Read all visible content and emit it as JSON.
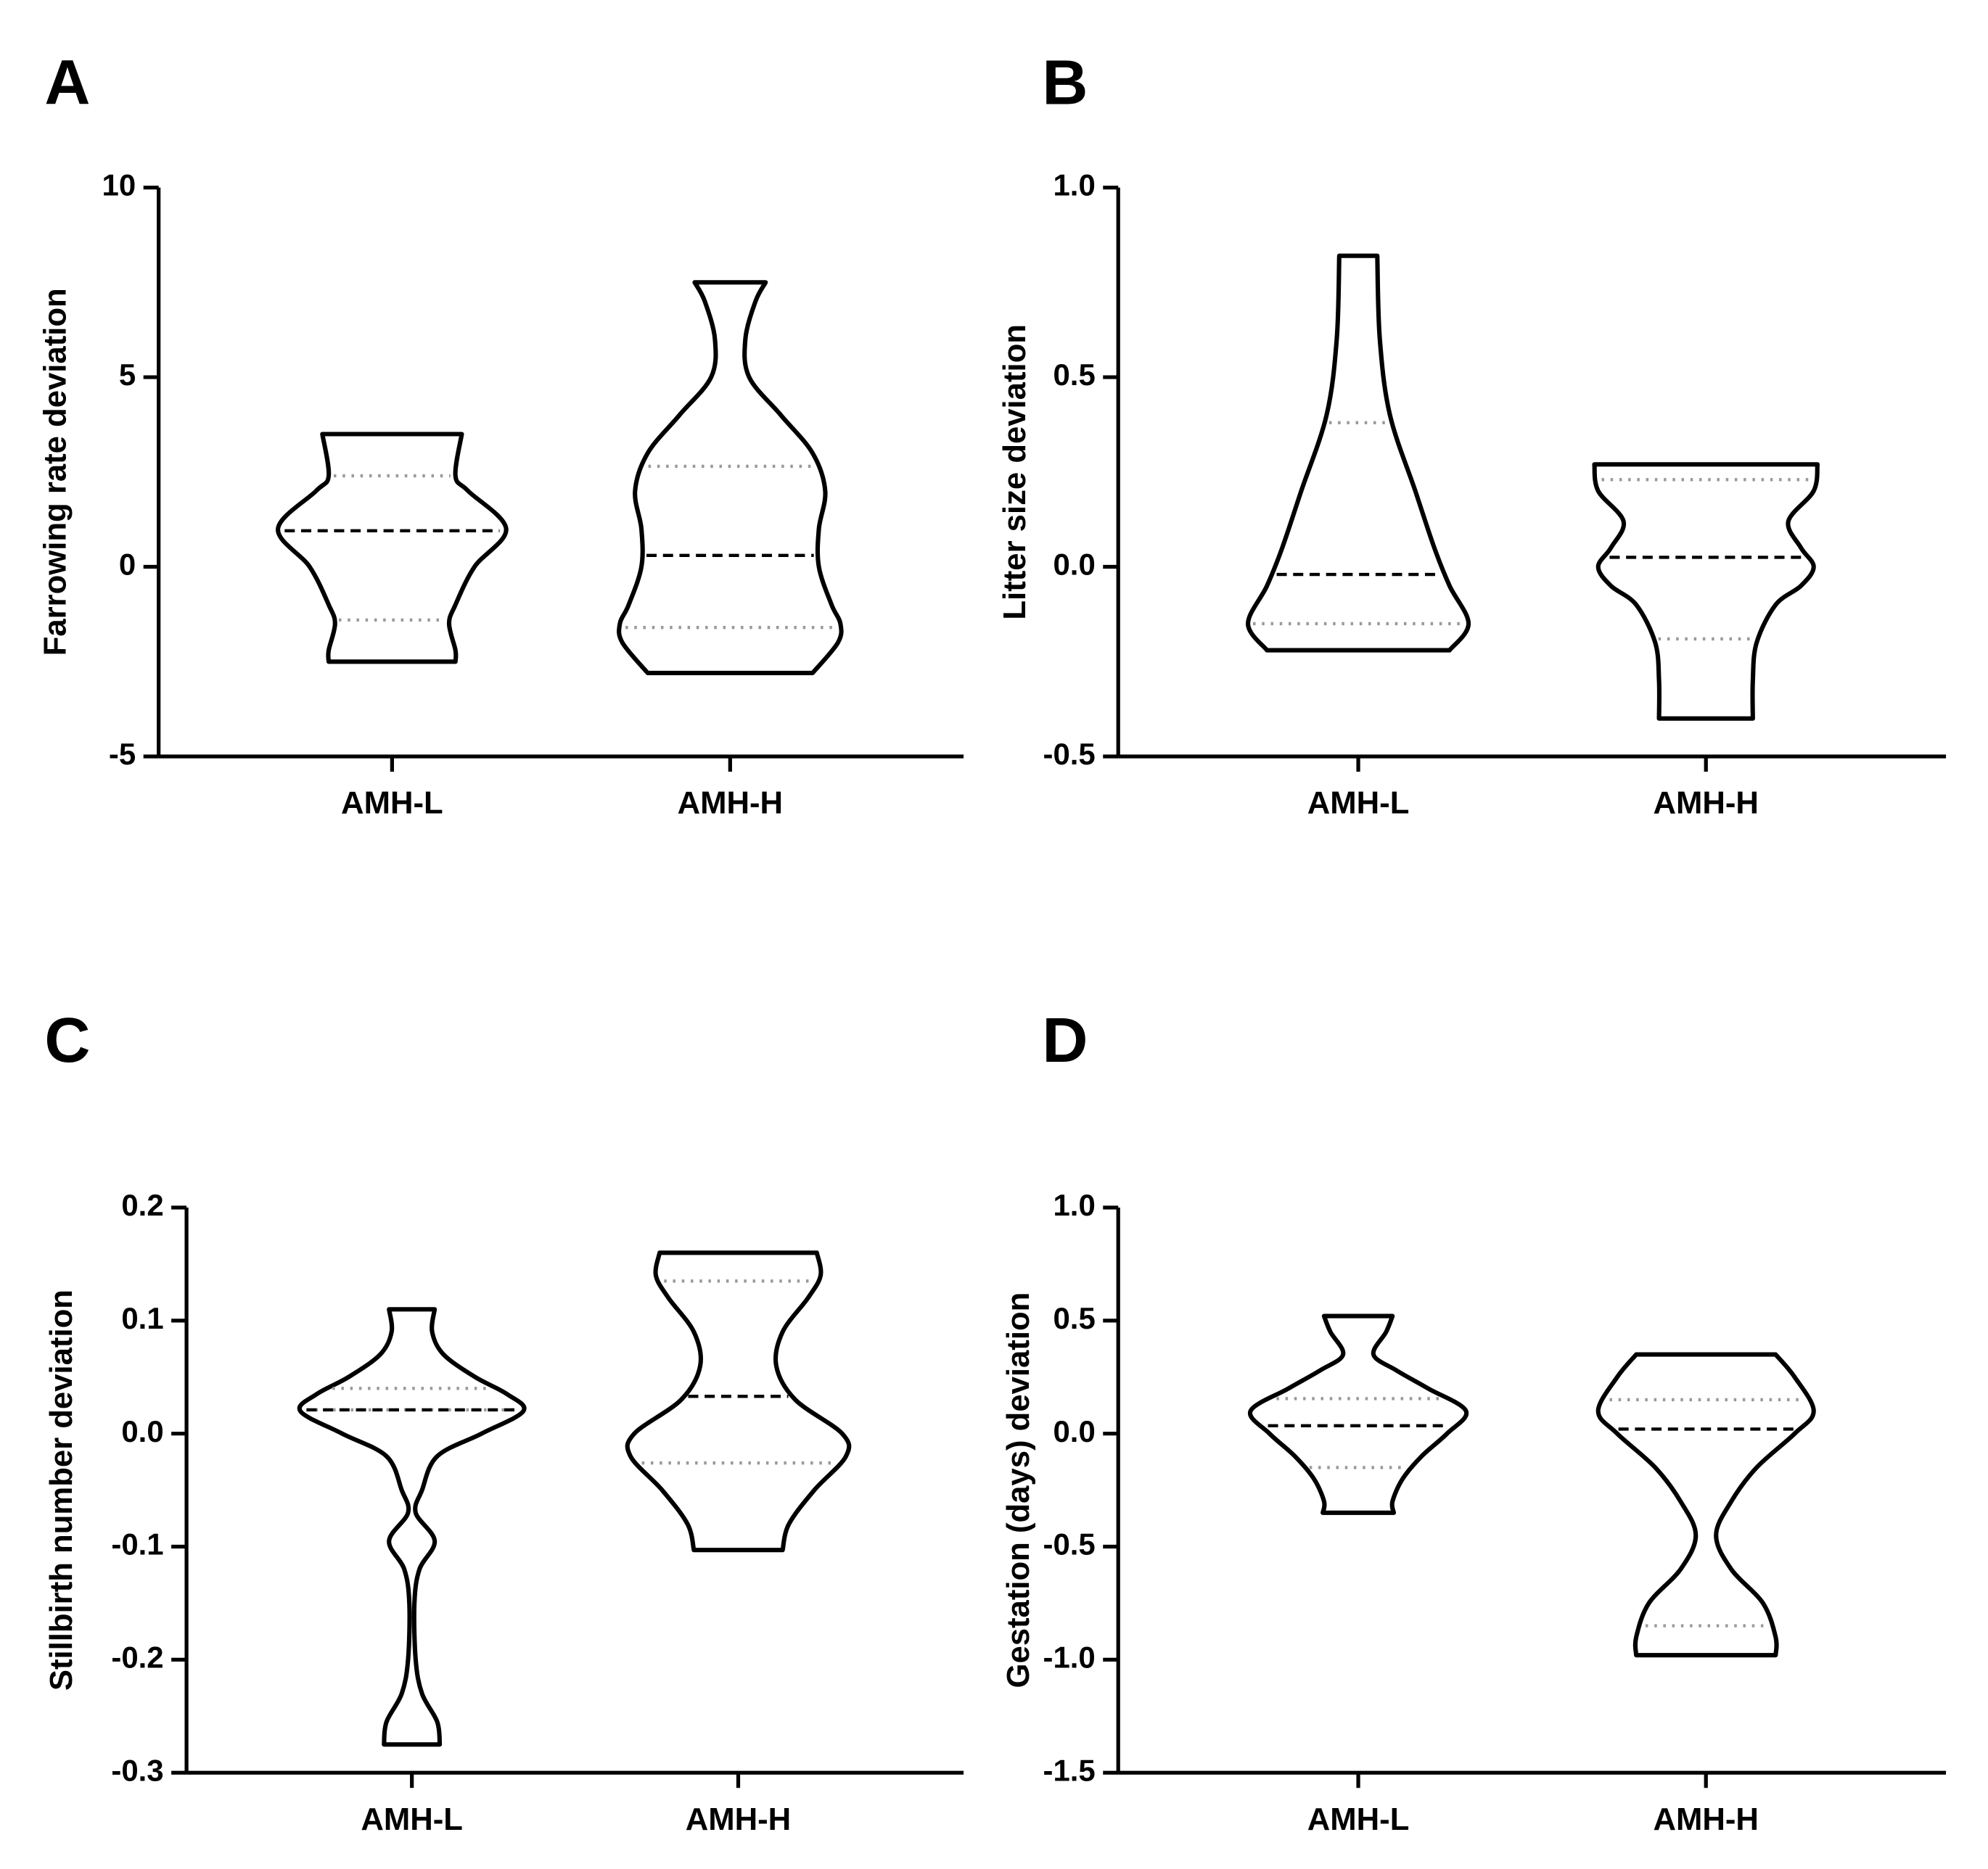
{
  "chart_data": [
    {
      "type": "violin",
      "label": "A",
      "ylabel": "Farrowing rate deviation",
      "categories": [
        "AMH-L",
        "AMH-H"
      ],
      "ylim": [
        -5,
        10
      ],
      "yticks": [
        -5,
        0,
        5,
        10
      ],
      "violins": [
        {
          "max": 3.5,
          "q3": 2.4,
          "median": 0.95,
          "q1": -1.4,
          "min": -2.5,
          "shape": {
            "y": [
              3.5,
              2.4,
              2.0,
              1.0,
              0,
              -1,
              -1.5,
              -2.2,
              -2.5
            ],
            "width": [
              0.55,
              0.5,
              0.6,
              0.9,
              0.65,
              0.5,
              0.45,
              0.5,
              0.5
            ]
          }
        },
        {
          "max": 7.5,
          "q3": 2.65,
          "median": 0.3,
          "q1": -1.6,
          "min": -2.8,
          "shape": {
            "y": [
              7.5,
              7,
              6,
              5,
              4,
              3,
              2,
              1,
              0,
              -1,
              -1.5,
              -2,
              -2.8
            ],
            "width": [
              0.28,
              0.2,
              0.12,
              0.15,
              0.4,
              0.65,
              0.75,
              0.7,
              0.7,
              0.8,
              0.87,
              0.85,
              0.65
            ]
          }
        }
      ]
    },
    {
      "type": "violin",
      "label": "B",
      "ylabel": "Litter size deviation",
      "categories": [
        "AMH-L",
        "AMH-H"
      ],
      "ylim": [
        -0.5,
        1.0
      ],
      "yticks": [
        {
          "value": -0.5,
          "label": "-0.5"
        },
        {
          "value": 0,
          "label": "0.0"
        },
        {
          "value": 0.5,
          "label": "0.5"
        },
        {
          "value": 1,
          "label": "1.0"
        }
      ],
      "violins": [
        {
          "max": 0.82,
          "q3": 0.38,
          "median": -0.02,
          "q1": -0.15,
          "min": -0.22,
          "shape": {
            "y": [
              0.82,
              0.6,
              0.4,
              0.2,
              0.05,
              -0.05,
              -0.15,
              -0.22
            ],
            "width": [
              0.15,
              0.17,
              0.25,
              0.45,
              0.6,
              0.72,
              0.87,
              0.72
            ]
          }
        },
        {
          "max": 0.27,
          "q3": 0.23,
          "median": 0.025,
          "q1": -0.19,
          "min": -0.4,
          "shape": {
            "y": [
              0.27,
              0.2,
              0.12,
              0.05,
              0,
              -0.05,
              -0.1,
              -0.2,
              -0.3,
              -0.4
            ],
            "width": [
              0.88,
              0.85,
              0.65,
              0.75,
              0.85,
              0.75,
              0.55,
              0.4,
              0.37,
              0.37
            ]
          }
        }
      ]
    },
    {
      "type": "violin",
      "label": "C",
      "ylabel": "Stillbirth number deviation",
      "categories": [
        "AMH-L",
        "AMH-H"
      ],
      "ylim": [
        -0.3,
        0.2
      ],
      "yticks": [
        -0.3,
        -0.2,
        -0.1,
        {
          "value": 0,
          "label": "0.0"
        },
        0.1,
        0.2
      ],
      "violins": [
        {
          "max": 0.11,
          "q3": 0.04,
          "median": 0.021,
          "q1": 0.021,
          "min": -0.275,
          "shape": {
            "y": [
              0.11,
              0.09,
              0.07,
              0.05,
              0.035,
              0.02,
              0,
              -0.02,
              -0.05,
              -0.07,
              -0.095,
              -0.12,
              -0.15,
              -0.2,
              -0.23,
              -0.255,
              -0.275
            ],
            "width": [
              0.18,
              0.16,
              0.25,
              0.5,
              0.75,
              0.88,
              0.55,
              0.2,
              0.08,
              0.03,
              0.18,
              0.06,
              0.02,
              0.03,
              0.08,
              0.2,
              0.22
            ]
          }
        },
        {
          "max": 0.16,
          "q3": 0.135,
          "median": 0.033,
          "q1": -0.026,
          "min": -0.103,
          "shape": {
            "y": [
              0.16,
              0.14,
              0.12,
              0.09,
              0.06,
              0.03,
              0,
              -0.02,
              -0.05,
              -0.08,
              -0.103
            ],
            "width": [
              0.62,
              0.65,
              0.55,
              0.35,
              0.3,
              0.45,
              0.82,
              0.85,
              0.6,
              0.4,
              0.35
            ]
          }
        }
      ]
    },
    {
      "type": "violin",
      "label": "D",
      "ylabel": "Gestation (days) deviation",
      "categories": [
        "AMH-L",
        "AMH-H"
      ],
      "ylim": [
        -1.5,
        1.0
      ],
      "yticks": [
        {
          "value": -1.5,
          "label": "-1.5"
        },
        {
          "value": -1,
          "label": "-1.0"
        },
        {
          "value": -0.5,
          "label": "-0.5"
        },
        {
          "value": 0,
          "label": "0.0"
        },
        {
          "value": 0.5,
          "label": "0.5"
        },
        {
          "value": 1,
          "label": "1.0"
        }
      ],
      "violins": [
        {
          "max": 0.52,
          "q3": 0.155,
          "median": 0.035,
          "q1": -0.15,
          "min": -0.35,
          "shape": {
            "y": [
              0.52,
              0.45,
              0.35,
              0.28,
              0.2,
              0.1,
              0,
              -0.1,
              -0.2,
              -0.3,
              -0.35
            ],
            "width": [
              0.27,
              0.22,
              0.12,
              0.3,
              0.55,
              0.85,
              0.7,
              0.5,
              0.35,
              0.27,
              0.28
            ]
          }
        },
        {
          "max": 0.35,
          "q3": 0.15,
          "median": 0.02,
          "q1": -0.85,
          "min": -0.98,
          "shape": {
            "y": [
              0.35,
              0.25,
              0.1,
              0,
              -0.15,
              -0.3,
              -0.45,
              -0.6,
              -0.75,
              -0.9,
              -0.98
            ],
            "width": [
              0.55,
              0.7,
              0.85,
              0.7,
              0.4,
              0.2,
              0.08,
              0.2,
              0.45,
              0.55,
              0.55
            ]
          }
        }
      ]
    }
  ]
}
